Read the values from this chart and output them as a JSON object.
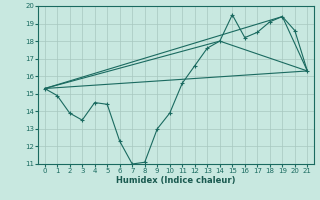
{
  "background_color": "#c8e8e0",
  "grid_color": "#a8c8c0",
  "line_color": "#1a6a60",
  "xlim": [
    -0.5,
    21.5
  ],
  "ylim": [
    11,
    20
  ],
  "xlabel": "Humidex (Indice chaleur)",
  "xticks": [
    0,
    1,
    2,
    3,
    4,
    5,
    6,
    7,
    8,
    9,
    10,
    11,
    12,
    13,
    14,
    15,
    16,
    17,
    18,
    19,
    20,
    21
  ],
  "yticks": [
    11,
    12,
    13,
    14,
    15,
    16,
    17,
    18,
    19,
    20
  ],
  "series1": {
    "x": [
      0,
      1,
      2,
      3,
      4,
      5,
      6,
      7,
      8,
      9,
      10,
      11,
      12,
      13,
      14,
      15,
      16,
      17,
      18,
      19,
      20,
      21
    ],
    "y": [
      15.3,
      14.9,
      13.9,
      13.5,
      14.5,
      14.4,
      12.3,
      11.0,
      11.1,
      13.0,
      13.9,
      15.6,
      16.6,
      17.6,
      18.0,
      19.5,
      18.2,
      18.5,
      19.1,
      19.4,
      18.6,
      16.3
    ]
  },
  "series2": {
    "x": [
      0,
      21
    ],
    "y": [
      15.3,
      16.3
    ]
  },
  "series3": {
    "x": [
      0,
      14,
      21
    ],
    "y": [
      15.3,
      18.0,
      16.3
    ]
  },
  "series4": {
    "x": [
      0,
      19,
      21
    ],
    "y": [
      15.3,
      19.4,
      16.3
    ]
  }
}
